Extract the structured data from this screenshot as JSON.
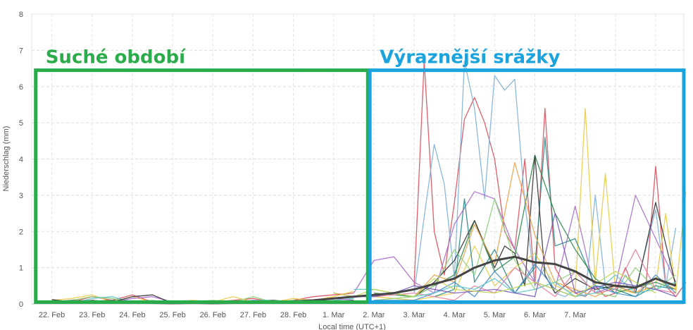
{
  "chart_data": {
    "type": "line",
    "title": "",
    "xlabel": "Local time (UTC+1)",
    "ylabel": "Niederschlag (mm)",
    "ylim": [
      0,
      8
    ],
    "yticks": [
      "0",
      "1",
      "2",
      "3",
      "4",
      "5",
      "6",
      "7",
      "8"
    ],
    "x_tick_labels": [
      "22. Feb",
      "23. Feb",
      "24. Feb",
      "25. Feb",
      "26. Feb",
      "27. Feb",
      "28. Feb",
      "1. Mar",
      "2. Mar",
      "3. Mar",
      "4. Mar",
      "5. Mar",
      "6. Mar",
      "7. Mar"
    ],
    "x_range_days": [
      -0.5,
      15.7
    ],
    "grid": true,
    "annotations": [
      {
        "text": "Suché období",
        "color": "#2aac4a",
        "x_range_days": [
          -0.4,
          7.85
        ],
        "y_range": [
          0.05,
          6.45
        ]
      },
      {
        "text": "Výraznější srážky",
        "color": "#1aa3dc",
        "x_range_days": [
          7.9,
          15.7
        ],
        "y_range": [
          0.05,
          6.45
        ]
      }
    ],
    "mean_series": {
      "color": "#444444",
      "x": [
        0,
        0.5,
        1,
        1.5,
        2,
        2.5,
        3,
        3.5,
        4,
        4.5,
        5,
        5.5,
        6,
        6.5,
        7,
        7.5,
        8,
        8.5,
        9,
        9.5,
        10,
        10.5,
        11,
        11.5,
        12,
        12.5,
        13,
        13.5,
        14,
        14.5,
        15,
        15.5
      ],
      "values": [
        0.05,
        0.08,
        0.06,
        0.08,
        0.05,
        0.03,
        0.02,
        0.03,
        0.02,
        0.03,
        0.03,
        0.05,
        0.07,
        0.1,
        0.15,
        0.2,
        0.25,
        0.3,
        0.4,
        0.55,
        0.7,
        1.0,
        1.2,
        1.3,
        1.15,
        1.1,
        0.9,
        0.6,
        0.5,
        0.45,
        0.7,
        0.5
      ]
    },
    "series": [
      {
        "color": "#d94f5c",
        "x": [
          9,
          9.25,
          9.5,
          9.75,
          10,
          10.25,
          10.5,
          10.75,
          11,
          11.25,
          11.5,
          11.75,
          12,
          12.25,
          12.5,
          12.75,
          13,
          13.25,
          13.5,
          13.75,
          14,
          14.25,
          14.5,
          14.75,
          15,
          15.25,
          15.5,
          15.75
        ],
        "values": [
          0.5,
          6.7,
          2.0,
          0.8,
          2.8,
          5.1,
          5.7,
          5.0,
          4.0,
          2.0,
          1.5,
          4.0,
          0.5,
          5.4,
          1.0,
          0.5,
          0.3,
          0.2,
          0.5,
          0.2,
          0.3,
          1.0,
          0.3,
          0.4,
          3.8,
          0.5,
          0.2,
          0.6
        ]
      },
      {
        "color": "#7fb0d8",
        "x": [
          9,
          9.25,
          9.5,
          9.75,
          10,
          10.25,
          10.5,
          10.75,
          11,
          11.25,
          11.5,
          11.75,
          12,
          12.25,
          12.5,
          12.75,
          13,
          13.25,
          13.5,
          13.75,
          14,
          14.25,
          14.5,
          14.75,
          15,
          15.25,
          15.5
        ],
        "values": [
          0.3,
          2.4,
          4.4,
          3.3,
          0.7,
          6.7,
          5.4,
          2.9,
          6.3,
          5.9,
          6.2,
          2.8,
          0.5,
          1.0,
          0.3,
          0.2,
          0.4,
          0.2,
          3.0,
          0.5,
          0.3,
          0.8,
          0.4,
          1.5,
          2.6,
          0.5,
          2.1
        ]
      },
      {
        "color": "#a96ed0",
        "x": [
          7.5,
          8,
          8.5,
          9,
          9.5,
          10,
          10.5,
          11,
          11.5,
          12,
          12.5,
          13,
          13.5,
          14,
          14.5,
          15,
          15.5
        ],
        "values": [
          0.3,
          1.2,
          1.3,
          0.6,
          0.3,
          2.2,
          3.1,
          2.9,
          1.5,
          0.6,
          0.4,
          2.7,
          0.3,
          0.5,
          3.0,
          1.8,
          0.6
        ]
      },
      {
        "color": "#e8cc4a",
        "x": [
          8,
          9,
          10,
          10.5,
          11,
          11.5,
          12,
          12.5,
          13,
          13.25,
          13.5,
          13.75,
          14,
          14.5,
          15,
          15.25,
          15.5,
          15.75
        ],
        "values": [
          0.2,
          0.1,
          0.3,
          1.6,
          0.5,
          1.0,
          1.4,
          0.5,
          0.3,
          5.4,
          0.6,
          3.6,
          0.4,
          0.3,
          0.5,
          2.5,
          0.3,
          3.1
        ]
      },
      {
        "color": "#2a8a8a",
        "x": [
          9.5,
          10,
          10.25,
          10.5,
          11,
          11.5,
          12,
          12.25,
          12.5,
          13,
          13.5,
          14,
          14.5,
          15,
          15.5
        ],
        "values": [
          0.2,
          0.4,
          2.9,
          0.6,
          1.5,
          0.3,
          1.0,
          4.6,
          1.6,
          1.8,
          0.5,
          0.4,
          0.2,
          0.5,
          0.4
        ]
      },
      {
        "color": "#2e8b4a",
        "x": [
          8,
          9,
          10,
          10.5,
          11,
          11.5,
          12,
          12.5,
          13,
          13.5,
          14,
          15,
          15.5
        ],
        "values": [
          0.3,
          0.2,
          0.8,
          2.3,
          0.9,
          1.3,
          4.1,
          2.5,
          1.5,
          0.7,
          0.3,
          0.6,
          0.4
        ]
      },
      {
        "color": "#333333",
        "x": [
          9,
          9.5,
          10,
          10.5,
          11,
          11.25,
          11.5,
          11.75,
          12,
          12.25,
          12.5,
          13,
          13.5,
          14,
          14.5,
          15,
          15.5
        ],
        "values": [
          0.2,
          0.6,
          1.2,
          2.3,
          1.0,
          1.6,
          1.4,
          0.5,
          4.1,
          0.8,
          0.3,
          0.7,
          0.4,
          0.5,
          0.3,
          2.8,
          0.5
        ]
      },
      {
        "color": "#f0a04a",
        "x": [
          9,
          9.5,
          10,
          10.5,
          11,
          11.5,
          12,
          12.5,
          13,
          13.5,
          14,
          14.5,
          15,
          15.5
        ],
        "values": [
          0.2,
          0.8,
          0.6,
          2.2,
          1.1,
          3.9,
          1.9,
          0.6,
          0.4,
          0.2,
          0.5,
          0.3,
          0.7,
          0.4
        ]
      },
      {
        "color": "#8fd07a",
        "x": [
          8,
          9,
          9.5,
          10,
          10.5,
          11,
          11.5,
          12,
          12.5,
          13,
          13.5,
          14,
          14.5,
          15,
          15.5
        ],
        "values": [
          0.1,
          0.2,
          0.5,
          1.5,
          0.8,
          2.9,
          1.2,
          0.4,
          0.6,
          0.9,
          0.3,
          0.2,
          1.0,
          0.4,
          0.8
        ]
      },
      {
        "color": "#4a8fd0",
        "x": [
          8,
          9,
          9.5,
          10,
          10.5,
          11,
          11.5,
          12,
          12.5,
          13,
          13.5,
          14,
          14.5,
          15,
          15.5
        ],
        "values": [
          0.1,
          0.1,
          0.3,
          0.6,
          0.2,
          0.9,
          0.3,
          1.1,
          0.4,
          0.2,
          0.5,
          0.3,
          0.2,
          0.8,
          0.3
        ]
      },
      {
        "color": "#e67fa0",
        "x": [
          8,
          9,
          10,
          10.5,
          11,
          11.5,
          12,
          12.5,
          13,
          13.5,
          14,
          14.5,
          15,
          15.5
        ],
        "values": [
          0.2,
          0.3,
          0.1,
          0.5,
          0.3,
          1.0,
          0.6,
          0.2,
          0.9,
          0.3,
          0.4,
          1.5,
          0.4,
          0.3
        ]
      },
      {
        "color": "#5ec7c7",
        "x": [
          7.5,
          8,
          8.5,
          9,
          9.5,
          10,
          10.5,
          11,
          11.5,
          12,
          12.5,
          13,
          13.5,
          14,
          14.5,
          15,
          15.5
        ],
        "values": [
          0.4,
          0.4,
          0.3,
          0.2,
          0.3,
          0.5,
          0.4,
          0.7,
          0.3,
          0.4,
          0.6,
          0.2,
          0.3,
          0.8,
          0.3,
          0.4,
          0.6
        ]
      },
      {
        "color": "#7a5cc0",
        "x": [
          7,
          7.5,
          8,
          8.5,
          9,
          10,
          11,
          12,
          12.5,
          13,
          14,
          15,
          15.5
        ],
        "values": [
          0.3,
          0.2,
          0.2,
          0.3,
          0.5,
          0.3,
          0.4,
          0.2,
          2.5,
          0.3,
          0.6,
          0.4,
          0.2
        ]
      },
      {
        "color": "#c0d84a",
        "x": [
          7,
          7.5,
          8,
          8.5,
          9,
          9.5,
          10,
          11,
          12,
          13,
          14,
          15
        ],
        "values": [
          0.3,
          0.2,
          0.4,
          0.3,
          0.2,
          0.7,
          0.4,
          0.3,
          0.6,
          0.2,
          0.9,
          0.3
        ]
      },
      {
        "color": "#d94f5c",
        "x": [
          0,
          0.5,
          1,
          1.5,
          2,
          2.5,
          3,
          3.5,
          4,
          4.5,
          5,
          5.5,
          6,
          6.5,
          7,
          7.5
        ],
        "values": [
          0.05,
          0.05,
          0.2,
          0.1,
          0.25,
          0.05,
          0.02,
          0.05,
          0.05,
          0.1,
          0.15,
          0.05,
          0.1,
          0.2,
          0.25,
          0.3
        ]
      },
      {
        "color": "#e8cc4a",
        "x": [
          0,
          0.5,
          1,
          1.5,
          2,
          2.5,
          3,
          3.5,
          4,
          4.5,
          5,
          5.5,
          6,
          6.5,
          7,
          7.5
        ],
        "values": [
          0.1,
          0.15,
          0.25,
          0.05,
          0.2,
          0.05,
          0.05,
          0.1,
          0.05,
          0.2,
          0.05,
          0.05,
          0.15,
          0.1,
          0.2,
          0.35
        ]
      },
      {
        "color": "#8fd07a",
        "x": [
          0,
          0.5,
          1,
          1.5,
          2,
          2.5,
          3,
          3.5,
          4,
          4.5,
          5,
          5.5,
          6,
          6.5,
          7,
          7.5
        ],
        "values": [
          0.02,
          0.1,
          0.2,
          0.15,
          0.05,
          0.1,
          0.02,
          0.05,
          0.1,
          0.05,
          0.2,
          0.05,
          0.1,
          0.05,
          0.15,
          0.2
        ]
      },
      {
        "color": "#5ec7c7",
        "x": [
          0,
          0.5,
          1,
          1.5,
          2,
          2.5,
          3,
          3.5,
          4,
          4.5,
          5,
          5.5,
          6,
          6.5,
          7,
          7.5
        ],
        "values": [
          0.05,
          0.02,
          0.15,
          0.2,
          0.05,
          0.02,
          0.05,
          0.05,
          0.02,
          0.05,
          0.1,
          0.1,
          0.05,
          0.05,
          0.1,
          0.15
        ]
      },
      {
        "color": "#a96ed0",
        "x": [
          0,
          0.5,
          1,
          1.5,
          2,
          2.5,
          3,
          3.5,
          4,
          4.5,
          5,
          5.5,
          6,
          6.5,
          7,
          7.5
        ],
        "values": [
          0.08,
          0.02,
          0.1,
          0.05,
          0.15,
          0.2,
          0.05,
          0.02,
          0.05,
          0.02,
          0.1,
          0.05,
          0.02,
          0.1,
          0.15,
          0.1
        ]
      },
      {
        "color": "#333333",
        "x": [
          0,
          0.5,
          1,
          1.5,
          2,
          2.5,
          3,
          3.5,
          4,
          4.5,
          5,
          5.5,
          6,
          6.5,
          7,
          7.5
        ],
        "values": [
          0.12,
          0.05,
          0.1,
          0.05,
          0.2,
          0.25,
          0.02,
          0.02,
          0.02,
          0.05,
          0.05,
          0.1,
          0.05,
          0.1,
          0.05,
          0.1
        ]
      }
    ]
  }
}
